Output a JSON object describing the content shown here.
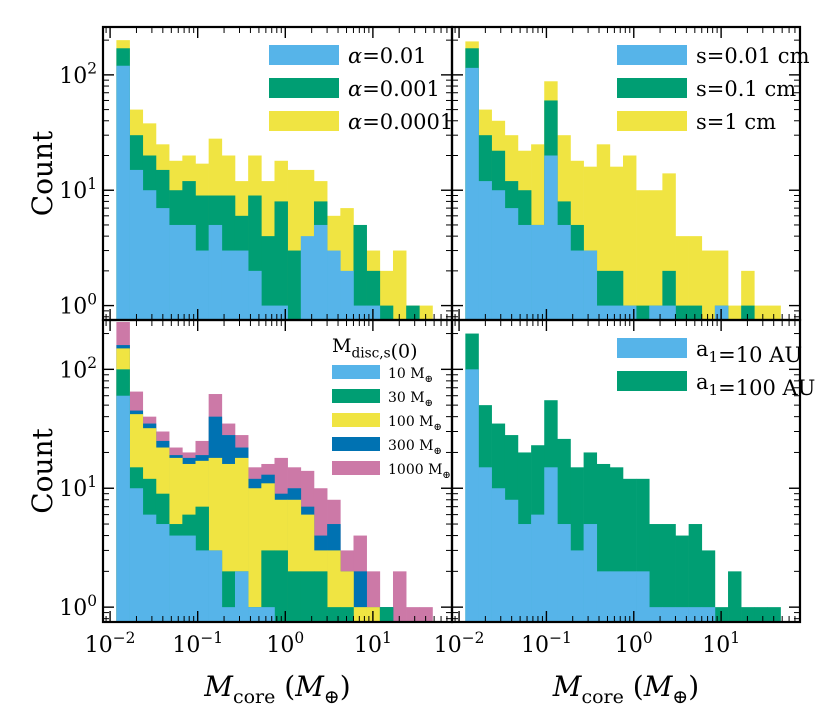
{
  "colors": {
    "blue": "#56b4e9",
    "green": "#009e73",
    "yellow": "#f0e442",
    "darkblue": "#0072b2",
    "pink": "#cc79a7"
  },
  "chart_data": [
    {
      "type": "bar",
      "panel": "top-left",
      "title": "",
      "xlabel": "",
      "ylabel": "Count",
      "xscale": "log",
      "yscale": "log",
      "xlim": [
        0.0083,
        80
      ],
      "ylim": [
        0.75,
        260
      ],
      "legend_location": "top-right",
      "bin_edges": [
        0.0118,
        0.0167,
        0.0236,
        0.0334,
        0.0472,
        0.0668,
        0.0944,
        0.1334,
        0.1886,
        0.2666,
        0.3768,
        0.5327,
        0.7529,
        1.064,
        1.504,
        2.126,
        3.006,
        4.249,
        6.006,
        8.49,
        12.0,
        16.96,
        23.98,
        33.9,
        47.91
      ],
      "series": [
        {
          "name": "α=0.01",
          "color": "blue",
          "values": [
            120,
            15,
            10,
            7,
            5,
            5,
            3,
            5,
            3,
            3,
            2,
            1,
            1,
            0,
            4,
            5,
            3,
            2,
            1,
            1,
            0,
            0,
            0,
            0
          ]
        },
        {
          "name": "α=0.001",
          "color": "green",
          "values": [
            170,
            30,
            20,
            15,
            10,
            12,
            9,
            9,
            9,
            6,
            9,
            4,
            8,
            3,
            3,
            8,
            2,
            1,
            5,
            2,
            1,
            0,
            1,
            0
          ]
        },
        {
          "name": "α=0.0001",
          "color": "yellow",
          "values": [
            200,
            50,
            38,
            25,
            18,
            20,
            17,
            28,
            20,
            12,
            20,
            12,
            18,
            15,
            15,
            12,
            6,
            7,
            4,
            3,
            2,
            3,
            1,
            1
          ]
        }
      ],
      "tick_labels_y": [
        "10^0",
        "10^1",
        "10^2"
      ],
      "tick_labels_x": []
    },
    {
      "type": "bar",
      "panel": "top-right",
      "title": "",
      "xlabel": "",
      "ylabel": "",
      "xscale": "log",
      "yscale": "log",
      "xlim": [
        0.0083,
        80
      ],
      "ylim": [
        0.75,
        260
      ],
      "legend_location": "top-right",
      "bin_edges": [
        0.0118,
        0.0167,
        0.0236,
        0.0334,
        0.0472,
        0.0668,
        0.0944,
        0.1334,
        0.1886,
        0.2666,
        0.3768,
        0.5327,
        0.7529,
        1.064,
        1.504,
        2.126,
        3.006,
        4.249,
        6.006,
        8.49,
        12.0,
        16.96,
        23.98,
        33.9,
        47.91
      ],
      "series": [
        {
          "name": "s=0.01 cm",
          "color": "blue",
          "values": [
            115,
            12,
            10,
            7,
            5,
            5,
            20,
            5,
            3,
            3,
            1,
            1,
            1,
            0,
            1,
            1,
            0,
            0,
            0,
            1,
            0,
            0,
            0,
            0
          ]
        },
        {
          "name": "s=0.1 cm",
          "color": "green",
          "values": [
            170,
            30,
            22,
            12,
            10,
            5,
            60,
            8,
            5,
            3,
            2,
            2,
            1,
            1,
            1,
            2,
            1,
            1,
            0,
            1,
            0,
            1,
            0,
            0
          ]
        },
        {
          "name": "s=1 cm",
          "color": "yellow",
          "values": [
            195,
            50,
            40,
            30,
            22,
            25,
            88,
            30,
            18,
            16,
            25,
            16,
            20,
            10,
            10,
            14,
            4,
            4,
            3,
            3,
            1,
            2,
            1,
            1
          ]
        }
      ],
      "tick_labels_y": [],
      "tick_labels_x": []
    },
    {
      "type": "bar",
      "panel": "bottom-left",
      "title": "",
      "xlabel": "M_core (M_⊕)",
      "ylabel": "Count",
      "xscale": "log",
      "yscale": "log",
      "xlim": [
        0.0083,
        80
      ],
      "ylim": [
        0.75,
        260
      ],
      "legend_location": "top-right",
      "legend_title": "M_disc,s(0)",
      "bin_edges": [
        0.0118,
        0.0167,
        0.0236,
        0.0334,
        0.0472,
        0.0668,
        0.0944,
        0.1334,
        0.1886,
        0.2666,
        0.3768,
        0.5327,
        0.7529,
        1.064,
        1.504,
        2.126,
        3.006,
        4.249,
        6.006,
        8.49,
        12.0,
        16.96,
        23.98,
        33.9,
        47.91
      ],
      "series": [
        {
          "name": "10 M_⊕",
          "color": "blue",
          "values": [
            60,
            10,
            6,
            5,
            4,
            4,
            3,
            3,
            1,
            2,
            1,
            1,
            0,
            0,
            0,
            0,
            0,
            0,
            0,
            0,
            0,
            0,
            0,
            0
          ]
        },
        {
          "name": "30 M_⊕",
          "color": "green",
          "values": [
            100,
            15,
            12,
            9,
            5,
            6,
            7,
            3,
            2,
            2,
            1,
            3,
            3,
            2,
            2,
            2,
            1,
            1,
            0,
            0,
            1,
            0,
            0,
            0
          ]
        },
        {
          "name": "100 M_⊕",
          "color": "yellow",
          "values": [
            150,
            42,
            32,
            22,
            18,
            16,
            17,
            18,
            16,
            18,
            10,
            11,
            8,
            8,
            6,
            3,
            3,
            2,
            1,
            1,
            0,
            0,
            0,
            0
          ]
        },
        {
          "name": "300 M_⊕",
          "color": "darkblue",
          "values": [
            160,
            45,
            35,
            25,
            19,
            18,
            19,
            40,
            28,
            22,
            12,
            13,
            9,
            10,
            7,
            4,
            5,
            2,
            2,
            1,
            1,
            0,
            0,
            0
          ]
        },
        {
          "name": "1000 M_⊕",
          "color": "pink",
          "values": [
            250,
            65,
            40,
            30,
            22,
            20,
            25,
            62,
            35,
            28,
            15,
            16,
            18,
            15,
            14,
            10,
            8,
            3,
            4,
            2,
            1,
            2,
            1,
            1
          ]
        }
      ],
      "tick_labels_y": [
        "10^0",
        "10^1",
        "10^2"
      ],
      "tick_labels_x": [
        "10^-2",
        "10^-1",
        "10^0",
        "10^1"
      ]
    },
    {
      "type": "bar",
      "panel": "bottom-right",
      "title": "",
      "xlabel": "M_core (M_⊕)",
      "ylabel": "",
      "xscale": "log",
      "yscale": "log",
      "xlim": [
        0.0083,
        80
      ],
      "ylim": [
        0.75,
        260
      ],
      "legend_location": "top-right",
      "bin_edges": [
        0.0118,
        0.0167,
        0.0236,
        0.0334,
        0.0472,
        0.0668,
        0.0944,
        0.1334,
        0.1886,
        0.2666,
        0.3768,
        0.5327,
        0.7529,
        1.064,
        1.504,
        2.126,
        3.006,
        4.249,
        6.006,
        8.49,
        12.0,
        16.96,
        23.98,
        33.9,
        47.91
      ],
      "series": [
        {
          "name": "a_1=10 AU",
          "color": "blue",
          "values": [
            100,
            15,
            10,
            8,
            5,
            6,
            15,
            5,
            3,
            5,
            2,
            2,
            2,
            2,
            1,
            1,
            1,
            1,
            1,
            0,
            0,
            0,
            0,
            0
          ]
        },
        {
          "name": "a_1=100 AU",
          "color": "green",
          "values": [
            200,
            50,
            35,
            28,
            20,
            23,
            55,
            26,
            15,
            20,
            16,
            15,
            12,
            12,
            5,
            5,
            4,
            5,
            3,
            1,
            2,
            1,
            1,
            1
          ]
        }
      ],
      "tick_labels_y": [],
      "tick_labels_x": [
        "10^-2",
        "10^-1",
        "10^0",
        "10^1"
      ]
    }
  ]
}
